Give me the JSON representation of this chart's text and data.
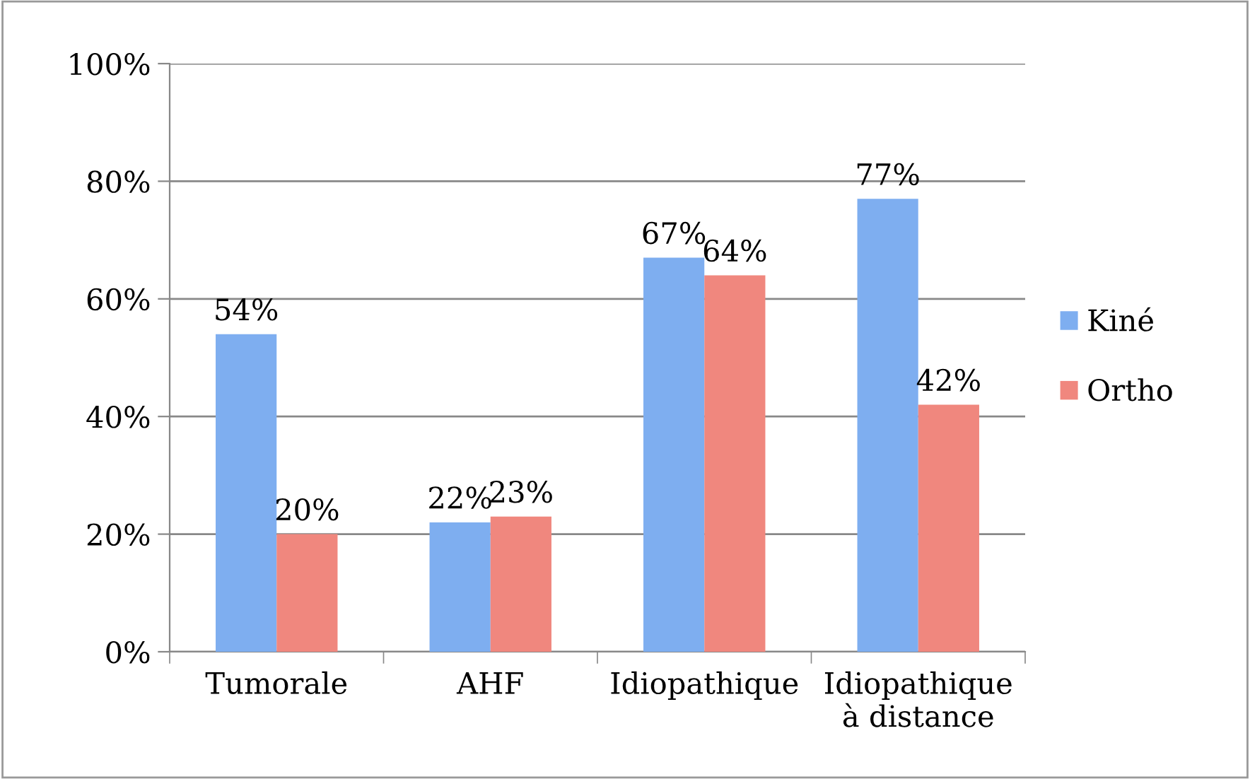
{
  "chart_data": {
    "type": "bar",
    "categories": [
      "Tumorale",
      "AHF",
      "Idiopathique",
      "Idiopathique\nà distance"
    ],
    "series": [
      {
        "name": "Kiné",
        "color": "#7eaef0",
        "values": [
          54,
          22,
          67,
          77
        ],
        "value_labels": [
          "54%",
          "22%",
          "67%",
          "77%"
        ]
      },
      {
        "name": "Ortho",
        "color": "#f0877e",
        "values": [
          20,
          23,
          64,
          42
        ],
        "value_labels": [
          "20%",
          "23%",
          "64%",
          "42%"
        ]
      }
    ],
    "ylim": [
      0,
      100
    ],
    "yticks": [
      {
        "value": 0,
        "label": "0%"
      },
      {
        "value": 20,
        "label": "20%"
      },
      {
        "value": 40,
        "label": "40%"
      },
      {
        "value": 60,
        "label": "60%"
      },
      {
        "value": 80,
        "label": "80%"
      },
      {
        "value": 100,
        "label": "100%"
      }
    ],
    "grid": "y",
    "legend": "right"
  }
}
